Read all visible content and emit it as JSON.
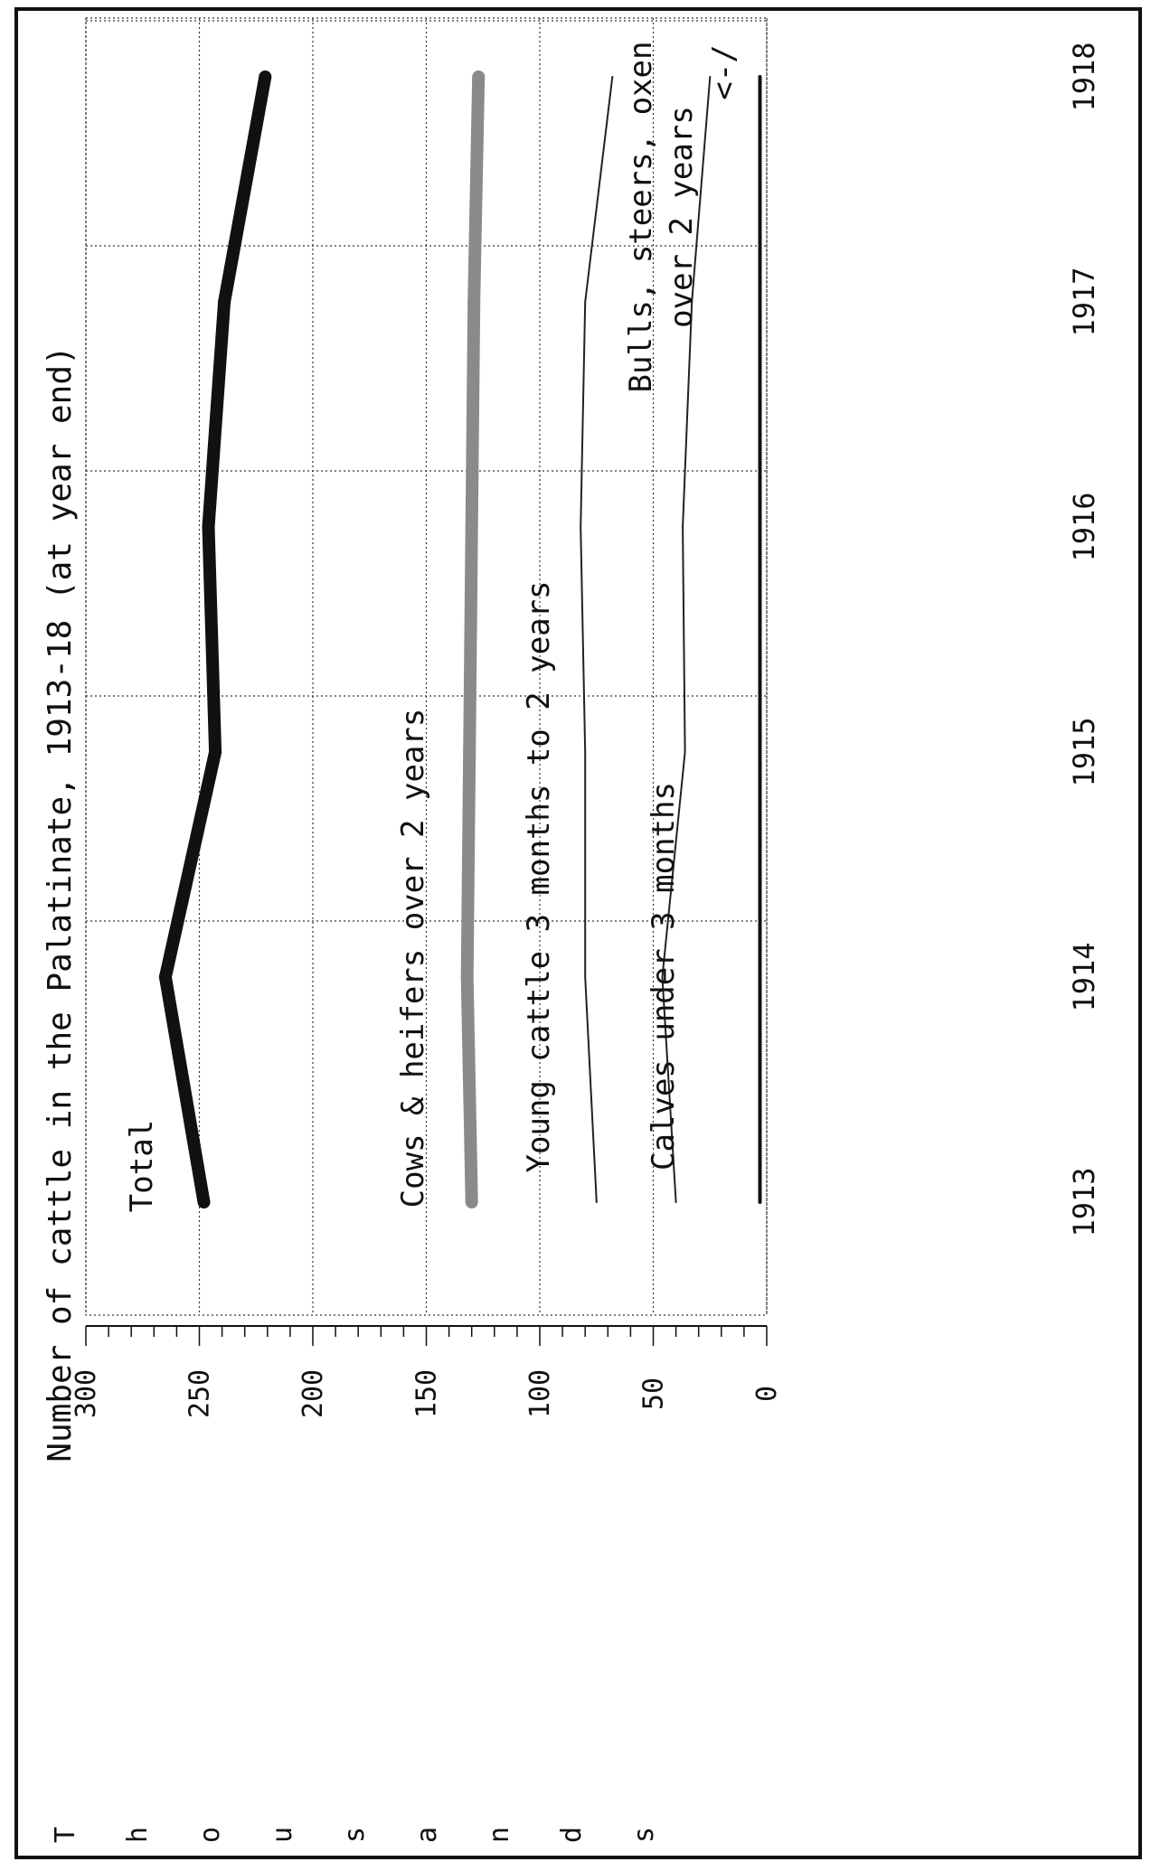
{
  "chart_data": {
    "type": "line",
    "title": "Number of cattle in the Palatinate, 1913-18 (at year end)",
    "ylabel": "Thousands",
    "ylabel_letters": [
      "T",
      "h",
      "o",
      "u",
      "s",
      "a",
      "n",
      "d",
      "s"
    ],
    "ylim": [
      0,
      300
    ],
    "y_ticks": [
      0,
      50,
      100,
      150,
      200,
      250,
      300
    ],
    "y_tick_labels": [
      "0",
      "50",
      "100",
      "150",
      "200",
      "250",
      "300"
    ],
    "xlim": [
      1913,
      1918
    ],
    "x": [
      1913,
      1914,
      1915,
      1916,
      1917,
      1918
    ],
    "x_tick_labels": [
      "1913",
      "1914",
      "1915",
      "1916",
      "1917",
      "1918"
    ],
    "grid": true,
    "series": [
      {
        "name": "Total",
        "style": "thick",
        "values": [
          248,
          265,
          243,
          246,
          239,
          221
        ]
      },
      {
        "name": "Cows & heifers over 2 years",
        "style": "gray",
        "values": [
          130,
          132,
          131,
          130,
          129,
          127
        ]
      },
      {
        "name": "Young cattle 3 months to 2 years",
        "style": "thin",
        "values": [
          75,
          80,
          80,
          82,
          80,
          68
        ]
      },
      {
        "name": "Calves under 3 months",
        "style": "thin",
        "values": [
          40,
          46,
          36,
          37,
          33,
          25
        ]
      },
      {
        "name": "Bulls, steers, oxen over 2 years",
        "style": "medium",
        "values": [
          3,
          3,
          3,
          3,
          3,
          3
        ]
      }
    ],
    "annotations": [
      {
        "text": "Total"
      },
      {
        "text": "Cows & heifers over 2 years"
      },
      {
        "text": "Young cattle 3 months to 2 years"
      },
      {
        "text": "Calves under 3 months"
      },
      {
        "text": "Bulls, steers, oxen"
      },
      {
        "text": "over 2 years"
      },
      {
        "text": "<-/"
      }
    ]
  }
}
